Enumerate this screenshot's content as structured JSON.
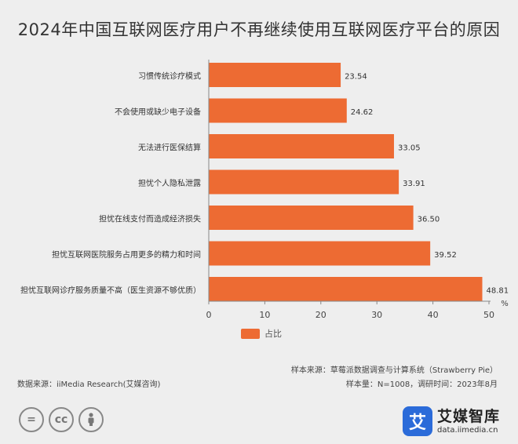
{
  "title": "2024年中国互联网医疗用户不再继续使用互联网医疗平台的原因",
  "chart_data": {
    "type": "bar",
    "orientation": "horizontal",
    "categories": [
      "习惯传统诊疗模式",
      "不会使用或缺少电子设备",
      "无法进行医保结算",
      "担忧个人隐私泄露",
      "担忧在线支付而造成经济损失",
      "担忧互联网医院服务占用更多的精力和时间",
      "担忧互联网诊疗服务质量不高（医生资源不够优质）"
    ],
    "series": [
      {
        "name": "占比",
        "values": [
          23.54,
          24.62,
          33.05,
          33.91,
          36.5,
          39.52,
          48.81
        ]
      }
    ],
    "value_labels": [
      "23.54",
      "24.62",
      "33.05",
      "33.91",
      "36.50",
      "39.52",
      "48.81"
    ],
    "xlim": [
      0,
      50
    ],
    "xticks": [
      0,
      10,
      20,
      30,
      40,
      50
    ],
    "unit": "%",
    "legend_position": "bottom",
    "grid": false,
    "bar_color": "#ed6b33"
  },
  "footer": {
    "source_left": "数据来源：iiMedia Research(艾媒咨询)",
    "sample_source": "样本来源：草莓派数据调查与计算系统（Strawberry Pie）",
    "sample_info": "样本量：N=1008，调研时间：2023年8月"
  },
  "cc_icons": [
    "equals-icon",
    "cc-icon",
    "person-icon"
  ],
  "brand": {
    "logo_glyph": "艾",
    "name": "艾媒智库",
    "url": "data.iimedia.cn"
  }
}
